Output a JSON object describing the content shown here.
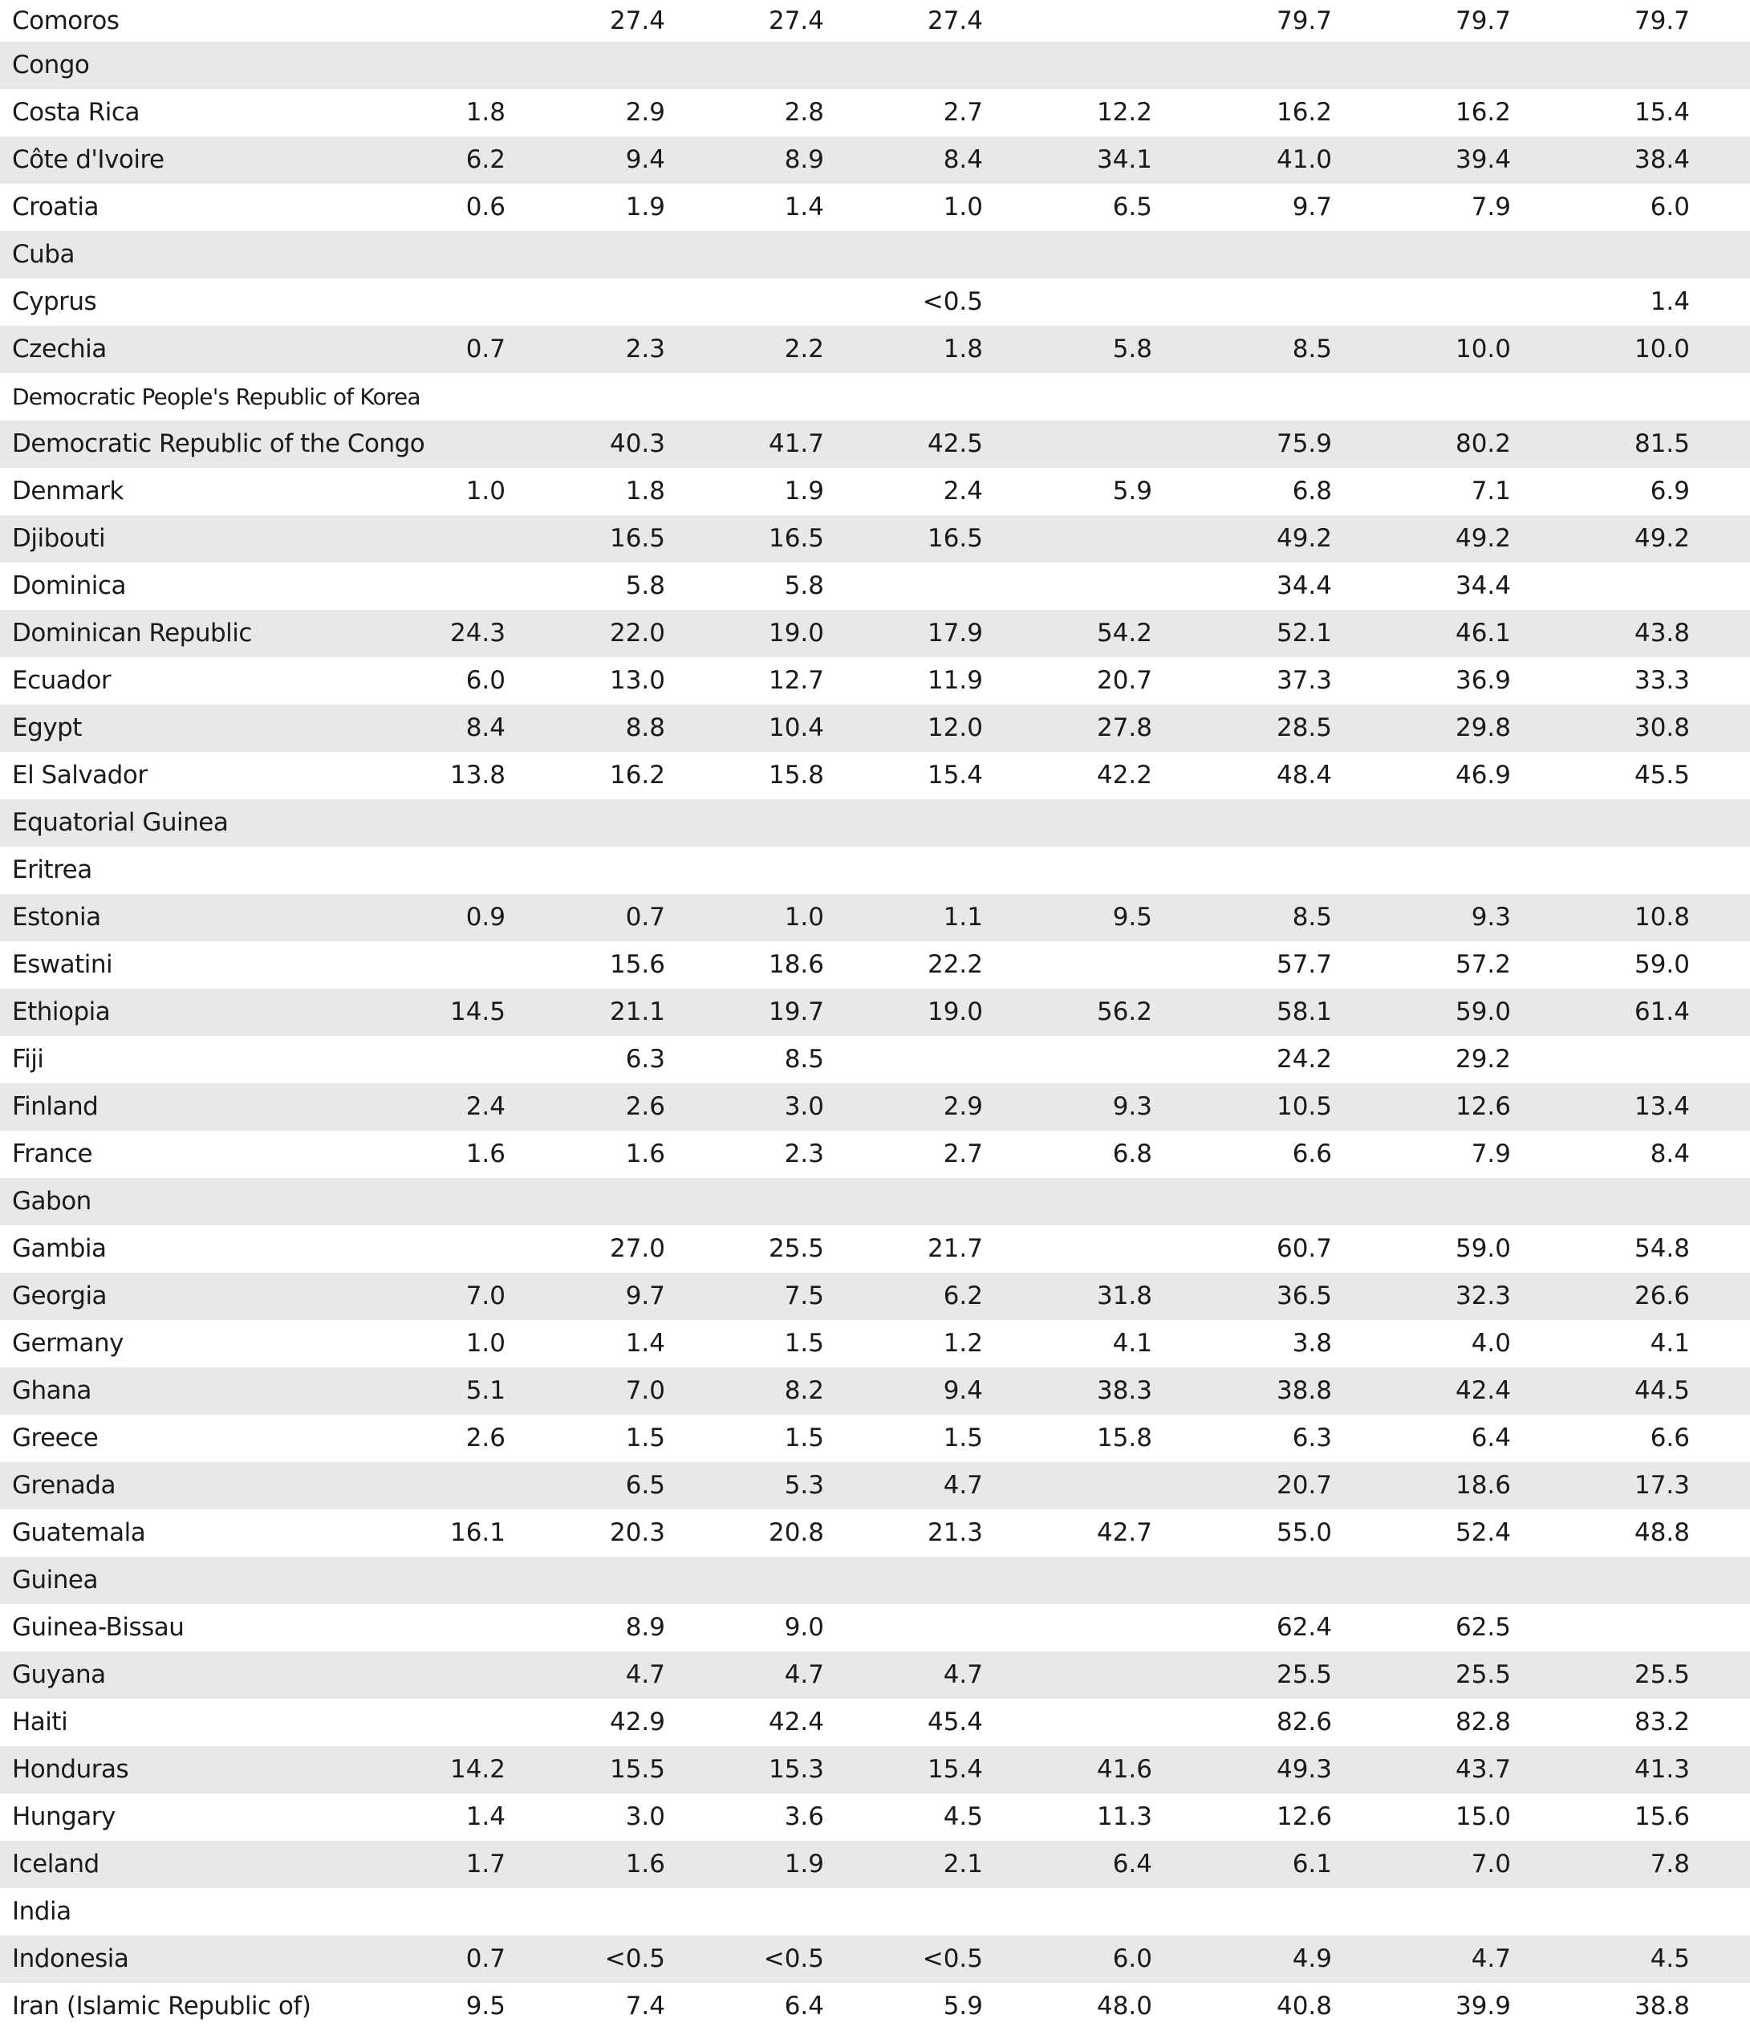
{
  "rows": [
    {
      "country": "Comoros",
      "values": [
        "",
        "27.4",
        "27.4",
        "27.4",
        "",
        "79.7",
        "79.7",
        "79.7"
      ]
    },
    {
      "country": "Congo",
      "values": [
        "",
        "",
        "",
        "",
        "",
        "",
        "",
        ""
      ]
    },
    {
      "country": "Costa Rica",
      "values": [
        "1.8",
        "2.9",
        "2.8",
        "2.7",
        "12.2",
        "16.2",
        "16.2",
        "15.4"
      ]
    },
    {
      "country": "Côte d'Ivoire",
      "values": [
        "6.2",
        "9.4",
        "8.9",
        "8.4",
        "34.1",
        "41.0",
        "39.4",
        "38.4"
      ]
    },
    {
      "country": "Croatia",
      "values": [
        "0.6",
        "1.9",
        "1.4",
        "1.0",
        "6.5",
        "9.7",
        "7.9",
        "6.0"
      ]
    },
    {
      "country": "Cuba",
      "values": [
        "",
        "",
        "",
        "",
        "",
        "",
        "",
        ""
      ]
    },
    {
      "country": "Cyprus",
      "values": [
        "",
        "",
        "",
        "<0.5",
        "",
        "",
        "",
        "1.4"
      ]
    },
    {
      "country": "Czechia",
      "values": [
        "0.7",
        "2.3",
        "2.2",
        "1.8",
        "5.8",
        "8.5",
        "10.0",
        "10.0"
      ]
    },
    {
      "country": "Democratic People's Republic of Korea",
      "values": [
        "",
        "",
        "",
        "",
        "",
        "",
        "",
        ""
      ]
    },
    {
      "country": "Democratic Republic of the Congo",
      "values": [
        "",
        "40.3",
        "41.7",
        "42.5",
        "",
        "75.9",
        "80.2",
        "81.5"
      ]
    },
    {
      "country": "Denmark",
      "values": [
        "1.0",
        "1.8",
        "1.9",
        "2.4",
        "5.9",
        "6.8",
        "7.1",
        "6.9"
      ]
    },
    {
      "country": "Djibouti",
      "values": [
        "",
        "16.5",
        "16.5",
        "16.5",
        "",
        "49.2",
        "49.2",
        "49.2"
      ]
    },
    {
      "country": "Dominica",
      "values": [
        "",
        "5.8",
        "5.8",
        "",
        "",
        "34.4",
        "34.4",
        ""
      ]
    },
    {
      "country": "Dominican Republic",
      "values": [
        "24.3",
        "22.0",
        "19.0",
        "17.9",
        "54.2",
        "52.1",
        "46.1",
        "43.8"
      ]
    },
    {
      "country": "Ecuador",
      "values": [
        "6.0",
        "13.0",
        "12.7",
        "11.9",
        "20.7",
        "37.3",
        "36.9",
        "33.3"
      ]
    },
    {
      "country": "Egypt",
      "values": [
        "8.4",
        "8.8",
        "10.4",
        "12.0",
        "27.8",
        "28.5",
        "29.8",
        "30.8"
      ]
    },
    {
      "country": "El Salvador",
      "values": [
        "13.8",
        "16.2",
        "15.8",
        "15.4",
        "42.2",
        "48.4",
        "46.9",
        "45.5"
      ]
    },
    {
      "country": "Equatorial Guinea",
      "values": [
        "",
        "",
        "",
        "",
        "",
        "",
        "",
        ""
      ]
    },
    {
      "country": "Eritrea",
      "values": [
        "",
        "",
        "",
        "",
        "",
        "",
        "",
        ""
      ]
    },
    {
      "country": "Estonia",
      "values": [
        "0.9",
        "0.7",
        "1.0",
        "1.1",
        "9.5",
        "8.5",
        "9.3",
        "10.8"
      ]
    },
    {
      "country": "Eswatini",
      "values": [
        "",
        "15.6",
        "18.6",
        "22.2",
        "",
        "57.7",
        "57.2",
        "59.0"
      ]
    },
    {
      "country": "Ethiopia",
      "values": [
        "14.5",
        "21.1",
        "19.7",
        "19.0",
        "56.2",
        "58.1",
        "59.0",
        "61.4"
      ]
    },
    {
      "country": "Fiji",
      "values": [
        "",
        "6.3",
        "8.5",
        "",
        "",
        "24.2",
        "29.2",
        ""
      ]
    },
    {
      "country": "Finland",
      "values": [
        "2.4",
        "2.6",
        "3.0",
        "2.9",
        "9.3",
        "10.5",
        "12.6",
        "13.4"
      ]
    },
    {
      "country": "France",
      "values": [
        "1.6",
        "1.6",
        "2.3",
        "2.7",
        "6.8",
        "6.6",
        "7.9",
        "8.4"
      ]
    },
    {
      "country": "Gabon",
      "values": [
        "",
        "",
        "",
        "",
        "",
        "",
        "",
        ""
      ]
    },
    {
      "country": "Gambia",
      "values": [
        "",
        "27.0",
        "25.5",
        "21.7",
        "",
        "60.7",
        "59.0",
        "54.8"
      ]
    },
    {
      "country": "Georgia",
      "values": [
        "7.0",
        "9.7",
        "7.5",
        "6.2",
        "31.8",
        "36.5",
        "32.3",
        "26.6"
      ]
    },
    {
      "country": "Germany",
      "values": [
        "1.0",
        "1.4",
        "1.5",
        "1.2",
        "4.1",
        "3.8",
        "4.0",
        "4.1"
      ]
    },
    {
      "country": "Ghana",
      "values": [
        "5.1",
        "7.0",
        "8.2",
        "9.4",
        "38.3",
        "38.8",
        "42.4",
        "44.5"
      ]
    },
    {
      "country": "Greece",
      "values": [
        "2.6",
        "1.5",
        "1.5",
        "1.5",
        "15.8",
        "6.3",
        "6.4",
        "6.6"
      ]
    },
    {
      "country": "Grenada",
      "values": [
        "",
        "6.5",
        "5.3",
        "4.7",
        "",
        "20.7",
        "18.6",
        "17.3"
      ]
    },
    {
      "country": "Guatemala",
      "values": [
        "16.1",
        "20.3",
        "20.8",
        "21.3",
        "42.7",
        "55.0",
        "52.4",
        "48.8"
      ]
    },
    {
      "country": "Guinea",
      "values": [
        "",
        "",
        "",
        "",
        "",
        "",
        "",
        ""
      ]
    },
    {
      "country": "Guinea-Bissau",
      "values": [
        "",
        "8.9",
        "9.0",
        "",
        "",
        "62.4",
        "62.5",
        ""
      ]
    },
    {
      "country": "Guyana",
      "values": [
        "",
        "4.7",
        "4.7",
        "4.7",
        "",
        "25.5",
        "25.5",
        "25.5"
      ]
    },
    {
      "country": "Haiti",
      "values": [
        "",
        "42.9",
        "42.4",
        "45.4",
        "",
        "82.6",
        "82.8",
        "83.2"
      ]
    },
    {
      "country": "Honduras",
      "values": [
        "14.2",
        "15.5",
        "15.3",
        "15.4",
        "41.6",
        "49.3",
        "43.7",
        "41.3"
      ]
    },
    {
      "country": "Hungary",
      "values": [
        "1.4",
        "3.0",
        "3.6",
        "4.5",
        "11.3",
        "12.6",
        "15.0",
        "15.6"
      ]
    },
    {
      "country": "Iceland",
      "values": [
        "1.7",
        "1.6",
        "1.9",
        "2.1",
        "6.4",
        "6.1",
        "7.0",
        "7.8"
      ]
    },
    {
      "country": "India",
      "values": [
        "",
        "",
        "",
        "",
        "",
        "",
        "",
        ""
      ]
    },
    {
      "country": "Indonesia",
      "values": [
        "0.7",
        "<0.5",
        "<0.5",
        "<0.5",
        "6.0",
        "4.9",
        "4.7",
        "4.5"
      ]
    },
    {
      "country": "Iran (Islamic Republic of)",
      "values": [
        "9.5",
        "7.4",
        "6.4",
        "5.9",
        "48.0",
        "40.8",
        "39.9",
        "38.8"
      ]
    }
  ]
}
